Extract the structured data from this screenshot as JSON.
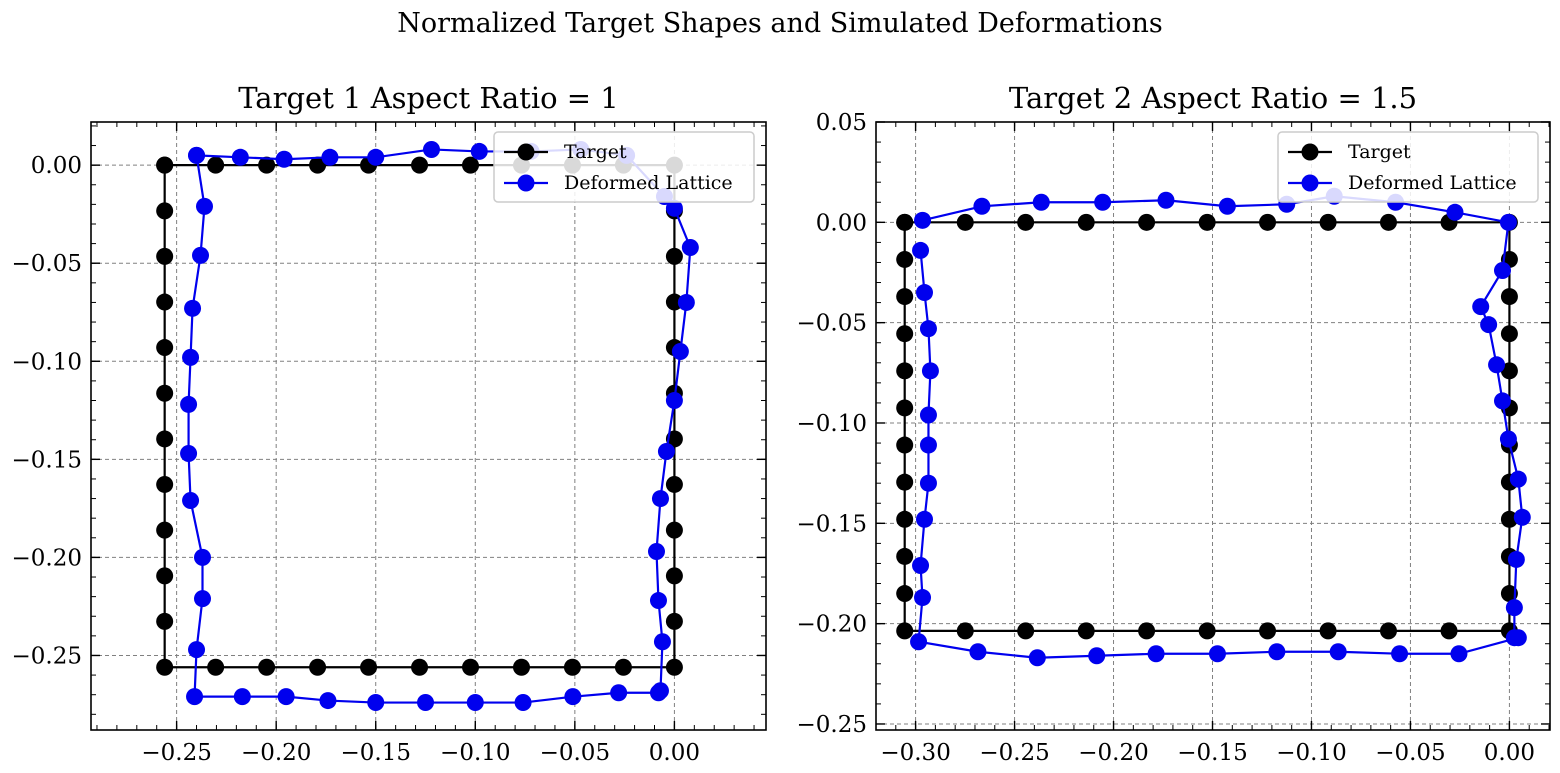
{
  "figure": {
    "suptitle": "Normalized Target Shapes and Simulated Deformations"
  },
  "chart_data": [
    {
      "type": "line",
      "title": "Target 1 Aspect Ratio = 1",
      "xlabel": "",
      "ylabel": "",
      "xlim": [
        -0.293,
        0.046
      ],
      "ylim": [
        -0.288,
        0.022
      ],
      "xticks": [
        -0.25,
        -0.2,
        -0.15,
        -0.1,
        -0.05,
        0.0
      ],
      "yticks": [
        0.0,
        -0.05,
        -0.1,
        -0.15,
        -0.2,
        -0.25
      ],
      "xtick_labels": [
        "−0.25",
        "−0.20",
        "−0.15",
        "−0.10",
        "−0.05",
        "0.00"
      ],
      "ytick_labels": [
        "0.00",
        "−0.05",
        "−0.10",
        "−0.15",
        "−0.20",
        "−0.25"
      ],
      "grid": true,
      "legend_position": "top-right",
      "series": [
        {
          "name": "Target",
          "color": "#000000",
          "x": [
            -0.256,
            -0.2304,
            -0.2048,
            -0.1792,
            -0.1536,
            -0.128,
            -0.1024,
            -0.0768,
            -0.0512,
            -0.0256,
            0.0,
            0.0,
            0.0,
            0.0,
            0.0,
            0.0,
            0.0,
            0.0,
            0.0,
            0.0,
            0.0,
            0.0,
            -0.0256,
            -0.0512,
            -0.0768,
            -0.1024,
            -0.128,
            -0.1536,
            -0.1792,
            -0.2048,
            -0.2304,
            -0.256,
            -0.256,
            -0.256,
            -0.256,
            -0.256,
            -0.256,
            -0.256,
            -0.256,
            -0.256,
            -0.256,
            -0.256,
            -0.256
          ],
          "y": [
            0.0,
            0.0,
            0.0,
            0.0,
            0.0,
            0.0,
            0.0,
            0.0,
            0.0,
            0.0,
            0.0,
            -0.0233,
            -0.0465,
            -0.0698,
            -0.093,
            -0.1163,
            -0.1396,
            -0.1628,
            -0.1861,
            -0.2094,
            -0.2326,
            -0.256,
            -0.256,
            -0.256,
            -0.256,
            -0.256,
            -0.256,
            -0.256,
            -0.256,
            -0.256,
            -0.256,
            -0.256,
            -0.2326,
            -0.2094,
            -0.1861,
            -0.1628,
            -0.1396,
            -0.1163,
            -0.093,
            -0.0698,
            -0.0465,
            -0.0233,
            0.0
          ]
        },
        {
          "name": "Deformed Lattice",
          "color": "#0000ee",
          "x": [
            -0.24,
            -0.218,
            -0.196,
            -0.173,
            -0.15,
            -0.122,
            -0.098,
            -0.072,
            -0.047,
            -0.024,
            -0.005,
            0.0,
            0.008,
            0.006,
            0.003,
            0.0,
            -0.004,
            -0.007,
            -0.009,
            -0.008,
            -0.006,
            -0.007,
            -0.008,
            -0.028,
            -0.051,
            -0.076,
            -0.1,
            -0.125,
            -0.15,
            -0.174,
            -0.195,
            -0.217,
            -0.241,
            -0.24,
            -0.237,
            -0.237,
            -0.243,
            -0.244,
            -0.244,
            -0.243,
            -0.242,
            -0.238,
            -0.236,
            -0.24
          ],
          "y": [
            0.005,
            0.004,
            0.003,
            0.004,
            0.004,
            0.008,
            0.007,
            0.007,
            0.008,
            0.005,
            -0.016,
            -0.022,
            -0.042,
            -0.07,
            -0.095,
            -0.12,
            -0.146,
            -0.17,
            -0.197,
            -0.222,
            -0.243,
            -0.268,
            -0.269,
            -0.269,
            -0.271,
            -0.274,
            -0.274,
            -0.274,
            -0.274,
            -0.273,
            -0.271,
            -0.271,
            -0.271,
            -0.247,
            -0.221,
            -0.2,
            -0.171,
            -0.147,
            -0.122,
            -0.098,
            -0.073,
            -0.046,
            -0.021,
            0.005
          ]
        }
      ]
    },
    {
      "type": "line",
      "title": "Target 2 Aspect Ratio = 1.5",
      "xlabel": "",
      "ylabel": "",
      "xlim": [
        -0.32,
        0.0205
      ],
      "ylim": [
        -0.253,
        0.05
      ],
      "xticks": [
        -0.3,
        -0.25,
        -0.2,
        -0.15,
        -0.1,
        -0.05,
        0.0
      ],
      "yticks": [
        0.05,
        0.0,
        -0.05,
        -0.1,
        -0.15,
        -0.2,
        -0.25
      ],
      "xtick_labels": [
        "−0.30",
        "−0.25",
        "−0.20",
        "−0.15",
        "−0.10",
        "−0.05",
        "0.00"
      ],
      "ytick_labels": [
        "0.05",
        "0.00",
        "−0.05",
        "−0.10",
        "−0.15",
        "−0.20",
        "−0.25"
      ],
      "grid": true,
      "legend_position": "top-right",
      "series": [
        {
          "name": "Target",
          "color": "#000000",
          "x": [
            -0.3055,
            -0.2749,
            -0.2444,
            -0.2138,
            -0.1833,
            -0.1527,
            -0.1222,
            -0.0916,
            -0.0611,
            -0.0305,
            0.0,
            0.0,
            0.0,
            0.0,
            0.0,
            0.0,
            0.0,
            0.0,
            0.0,
            0.0,
            0.0,
            0.0,
            -0.0305,
            -0.0611,
            -0.0916,
            -0.1222,
            -0.1527,
            -0.1833,
            -0.2138,
            -0.2444,
            -0.2749,
            -0.3055,
            -0.3055,
            -0.3055,
            -0.3055,
            -0.3055,
            -0.3055,
            -0.3055,
            -0.3055,
            -0.3055,
            -0.3055,
            -0.3055,
            -0.3055
          ],
          "y": [
            0.0,
            0.0,
            0.0,
            0.0,
            0.0,
            0.0,
            0.0,
            0.0,
            0.0,
            0.0,
            0.0,
            -0.0185,
            -0.037,
            -0.0555,
            -0.074,
            -0.0925,
            -0.111,
            -0.1295,
            -0.148,
            -0.1665,
            -0.185,
            -0.2036,
            -0.2036,
            -0.2036,
            -0.2036,
            -0.2036,
            -0.2036,
            -0.2036,
            -0.2036,
            -0.2036,
            -0.2036,
            -0.2036,
            -0.185,
            -0.1665,
            -0.148,
            -0.1295,
            -0.111,
            -0.0925,
            -0.074,
            -0.0555,
            -0.037,
            -0.0185,
            0.0
          ]
        },
        {
          "name": "Deformed Lattice",
          "color": "#0000ee",
          "x": [
            -0.2965,
            -0.2665,
            -0.2365,
            -0.2055,
            -0.1735,
            -0.1425,
            -0.1125,
            -0.0885,
            -0.0575,
            -0.0275,
            -0.0005,
            -0.0035,
            -0.0145,
            -0.0105,
            -0.0065,
            -0.0035,
            -0.0005,
            0.0045,
            0.0065,
            0.0035,
            0.0025,
            0.0025,
            0.0045,
            -0.0255,
            -0.0555,
            -0.0865,
            -0.1175,
            -0.1475,
            -0.1785,
            -0.2085,
            -0.2385,
            -0.2685,
            -0.2985,
            -0.2965,
            -0.2975,
            -0.2955,
            -0.2935,
            -0.2935,
            -0.2935,
            -0.2925,
            -0.2935,
            -0.2955,
            -0.2975
          ],
          "y": [
            0.001,
            0.008,
            0.01,
            0.01,
            0.011,
            0.008,
            0.009,
            0.013,
            0.01,
            0.005,
            0.0,
            -0.024,
            -0.042,
            -0.051,
            -0.071,
            -0.089,
            -0.108,
            -0.128,
            -0.147,
            -0.168,
            -0.192,
            -0.207,
            -0.207,
            -0.215,
            -0.215,
            -0.214,
            -0.214,
            -0.215,
            -0.215,
            -0.216,
            -0.217,
            -0.214,
            -0.209,
            -0.187,
            -0.171,
            -0.148,
            -0.13,
            -0.111,
            -0.096,
            -0.074,
            -0.053,
            -0.035,
            -0.014
          ]
        }
      ]
    }
  ]
}
